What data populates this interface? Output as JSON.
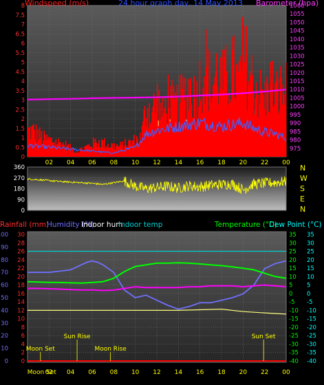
{
  "page_title": "24 hour graph day, 14 May 2013",
  "colors": {
    "background": "#000000",
    "plot_bg_top": "#5a5a5a",
    "plot_bg_bottom": "#2a2a2a",
    "grid": "#707070",
    "wind": "#ff0000",
    "gust": "#ffff80",
    "avg_wind": "#4060ff",
    "barometer": "#ff00ff",
    "direction": "#ffff00",
    "rain": "#ff0000",
    "humidity": "#7070ff",
    "indoor_hum": "#ffffff",
    "indoor_temp": "#00d0d0",
    "temperature": "#00ff00",
    "dew_point": "#00ffff",
    "events": "#ffff00",
    "x_ticks": "#ffff00"
  },
  "chart_data": [
    {
      "type": "bar",
      "title": "24 hour graph day, 14 May 2013",
      "left_axis_label": "Windspeed (m/s)",
      "right_axis_label": "Barometer (hpa)",
      "x_tick_labels": [
        "02",
        "04",
        "06",
        "08",
        "10",
        "12",
        "14",
        "16",
        "18",
        "20",
        "22",
        "00"
      ],
      "x_range": [
        0,
        24
      ],
      "y_left_range": [
        0,
        8
      ],
      "y_left_ticks": [
        "0",
        "0.5",
        "1",
        "1.5",
        "2",
        "2.5",
        "3",
        "3.5",
        "4",
        "4.5",
        "5",
        "5.5",
        "6",
        "6.5",
        "7",
        "7.5",
        "8"
      ],
      "y_right_range": [
        970,
        1060
      ],
      "y_right_ticks": [
        "975",
        "980",
        "985",
        "990",
        "995",
        "1000",
        "1005",
        "1010",
        "1015",
        "1020",
        "1025",
        "1030",
        "1035",
        "1040",
        "1045",
        "1050",
        "1055",
        "1060"
      ],
      "series": [
        {
          "key": "gust",
          "x": [
            0.5,
            1.5,
            2.5,
            3.5,
            4.5,
            5.5,
            6.5,
            7.5,
            8.5,
            9.5,
            10.5,
            11,
            11.5,
            12,
            12.5,
            13,
            13.5,
            14,
            14.5,
            15,
            15.5,
            16,
            16.5,
            17,
            17.5,
            18,
            18.5,
            19,
            19.5,
            20,
            20.5,
            21,
            21.5,
            22,
            22.5,
            23,
            23.5
          ],
          "values": [
            2.0,
            1.4,
            1.2,
            0.9,
            0.4,
            0.8,
            1.2,
            0.9,
            0.8,
            1.1,
            1.5,
            4.0,
            3.5,
            4.5,
            3.2,
            4.8,
            3.8,
            4.2,
            5.0,
            5.5,
            4.6,
            6.0,
            7.2,
            5.2,
            6.5,
            5.8,
            6.2,
            6.8,
            5.6,
            8.0,
            6.4,
            5.6,
            5.0,
            4.4,
            5.8,
            4.8,
            5.2
          ]
        },
        {
          "key": "avg_wind",
          "x": [
            0,
            2,
            4,
            6,
            8,
            10,
            11,
            12,
            14,
            16,
            18,
            20,
            21,
            22,
            23,
            24
          ],
          "values": [
            0.6,
            0.5,
            0.4,
            0.3,
            0.2,
            0.5,
            1.2,
            1.4,
            1.6,
            1.8,
            1.6,
            1.8,
            1.5,
            1.3,
            1.2,
            1.0
          ]
        },
        {
          "key": "barometer",
          "x": [
            0,
            2,
            4,
            6,
            8,
            10,
            12,
            14,
            16,
            18,
            20,
            22,
            24
          ],
          "values": [
            1004,
            1004.3,
            1004.5,
            1004.8,
            1005,
            1005.2,
            1005.4,
            1005.8,
            1006.4,
            1007,
            1007.8,
            1008.8,
            1010
          ]
        }
      ]
    },
    {
      "type": "scatter",
      "title": "",
      "right_axis_letters": [
        "N",
        "W",
        "S",
        "E",
        "N"
      ],
      "y_range": [
        0,
        360
      ],
      "y_ticks": [
        "0",
        "90",
        "180",
        "270",
        "360"
      ],
      "x_range": [
        0,
        24
      ],
      "series": [
        {
          "key": "direction",
          "x": [
            0,
            1,
            2,
            3,
            4,
            5,
            6,
            7,
            8,
            9,
            10,
            11,
            12,
            13,
            14,
            15,
            16,
            17,
            18,
            19,
            20,
            21,
            22,
            23,
            24
          ],
          "values": [
            260,
            255,
            248,
            240,
            235,
            230,
            225,
            215,
            230,
            245,
            200,
            180,
            190,
            200,
            185,
            205,
            195,
            210,
            215,
            220,
            170,
            220,
            225,
            232,
            240
          ]
        }
      ]
    },
    {
      "type": "line",
      "title": "",
      "header_labels": {
        "rain": "Rainfall (mm)",
        "humidity": "Humidity (%)",
        "indoor_hum": "Indoor hum",
        "indoor_temp": "Indoor temp",
        "temperature": "Temperature (°C)",
        "dew_point": "Dew Point (°C)"
      },
      "x_range": [
        0,
        24
      ],
      "x_tick_labels": [
        "02",
        "04",
        "06",
        "08",
        "10",
        "12",
        "14",
        "16",
        "18",
        "20",
        "22",
        "00"
      ],
      "humidity_range": [
        0,
        100
      ],
      "humidity_ticks": [
        "0",
        "10",
        "20",
        "30",
        "40",
        "50",
        "60",
        "70",
        "80",
        "90",
        "100"
      ],
      "rain_range": [
        0,
        30
      ],
      "rain_ticks": [
        "0",
        "2",
        "4",
        "6",
        "8",
        "10",
        "12",
        "14",
        "16",
        "18",
        "20",
        "22",
        "24",
        "26",
        "28",
        "30"
      ],
      "temp_range": [
        -40,
        35
      ],
      "temp_ticks": [
        "-40",
        "-35",
        "-30",
        "-25",
        "-20",
        "-15",
        "-10",
        "-5",
        "0",
        "5",
        "10",
        "15",
        "20",
        "25",
        "30",
        "35"
      ],
      "series": [
        {
          "key": "indoor_temp",
          "x": [
            0,
            24
          ],
          "values": [
            26,
            26
          ]
        },
        {
          "key": "humidity",
          "x": [
            0,
            1,
            2,
            3,
            4,
            5,
            5.5,
            6,
            6.5,
            7,
            7.5,
            8,
            9,
            10,
            11,
            12,
            13,
            14,
            15,
            16,
            17,
            18,
            19,
            20,
            21,
            22,
            23,
            24
          ],
          "values": [
            70,
            70,
            70,
            71,
            72,
            76,
            78,
            79,
            78,
            76,
            73,
            70,
            56,
            50,
            52,
            48,
            44,
            41,
            43,
            46,
            46,
            48,
            50,
            53,
            60,
            73,
            77,
            79
          ]
        },
        {
          "key": "temperature",
          "x": [
            0,
            1,
            2,
            3,
            4,
            5,
            6,
            7,
            8,
            9,
            10,
            11,
            12,
            13,
            14,
            15,
            16,
            17,
            18,
            19,
            20,
            21,
            22,
            23,
            24
          ],
          "values": [
            7,
            6.8,
            6.6,
            6.5,
            6.3,
            6.2,
            6.5,
            7,
            9,
            13,
            16,
            17,
            18,
            18,
            18.2,
            18,
            17.5,
            17,
            16.5,
            15.8,
            15,
            14,
            12,
            10,
            9
          ]
        },
        {
          "key": "dew_point",
          "x": [
            0,
            1,
            2,
            3,
            4,
            5,
            6,
            7,
            8,
            9,
            10,
            11,
            12,
            13,
            14,
            15,
            16,
            17,
            18,
            19,
            20,
            21,
            22,
            23,
            24
          ],
          "values": [
            3,
            3,
            2.8,
            2.6,
            2.3,
            2.1,
            2.1,
            1.8,
            2,
            3,
            4,
            3.5,
            3.5,
            3.5,
            3.5,
            4,
            4,
            4.5,
            4.5,
            4.5,
            4,
            4.5,
            5,
            4.5,
            4
          ]
        },
        {
          "key": "indoor_hum",
          "x": [
            0,
            6,
            9,
            14,
            18,
            20,
            22,
            24
          ],
          "values": [
            40,
            40,
            40,
            40,
            41,
            39,
            38,
            37
          ]
        },
        {
          "key": "rain",
          "x": [
            0,
            24
          ],
          "values": [
            0,
            0
          ]
        }
      ],
      "events": [
        {
          "label": "Moon Set",
          "time": 1.2,
          "row": "low"
        },
        {
          "label": "Sun Rise",
          "time": 4.6,
          "row": "high"
        },
        {
          "label": "Moon Rise",
          "time": 7.7,
          "row": "low"
        },
        {
          "label": "Sun Set",
          "time": 21.9,
          "row": "high"
        }
      ]
    }
  ]
}
